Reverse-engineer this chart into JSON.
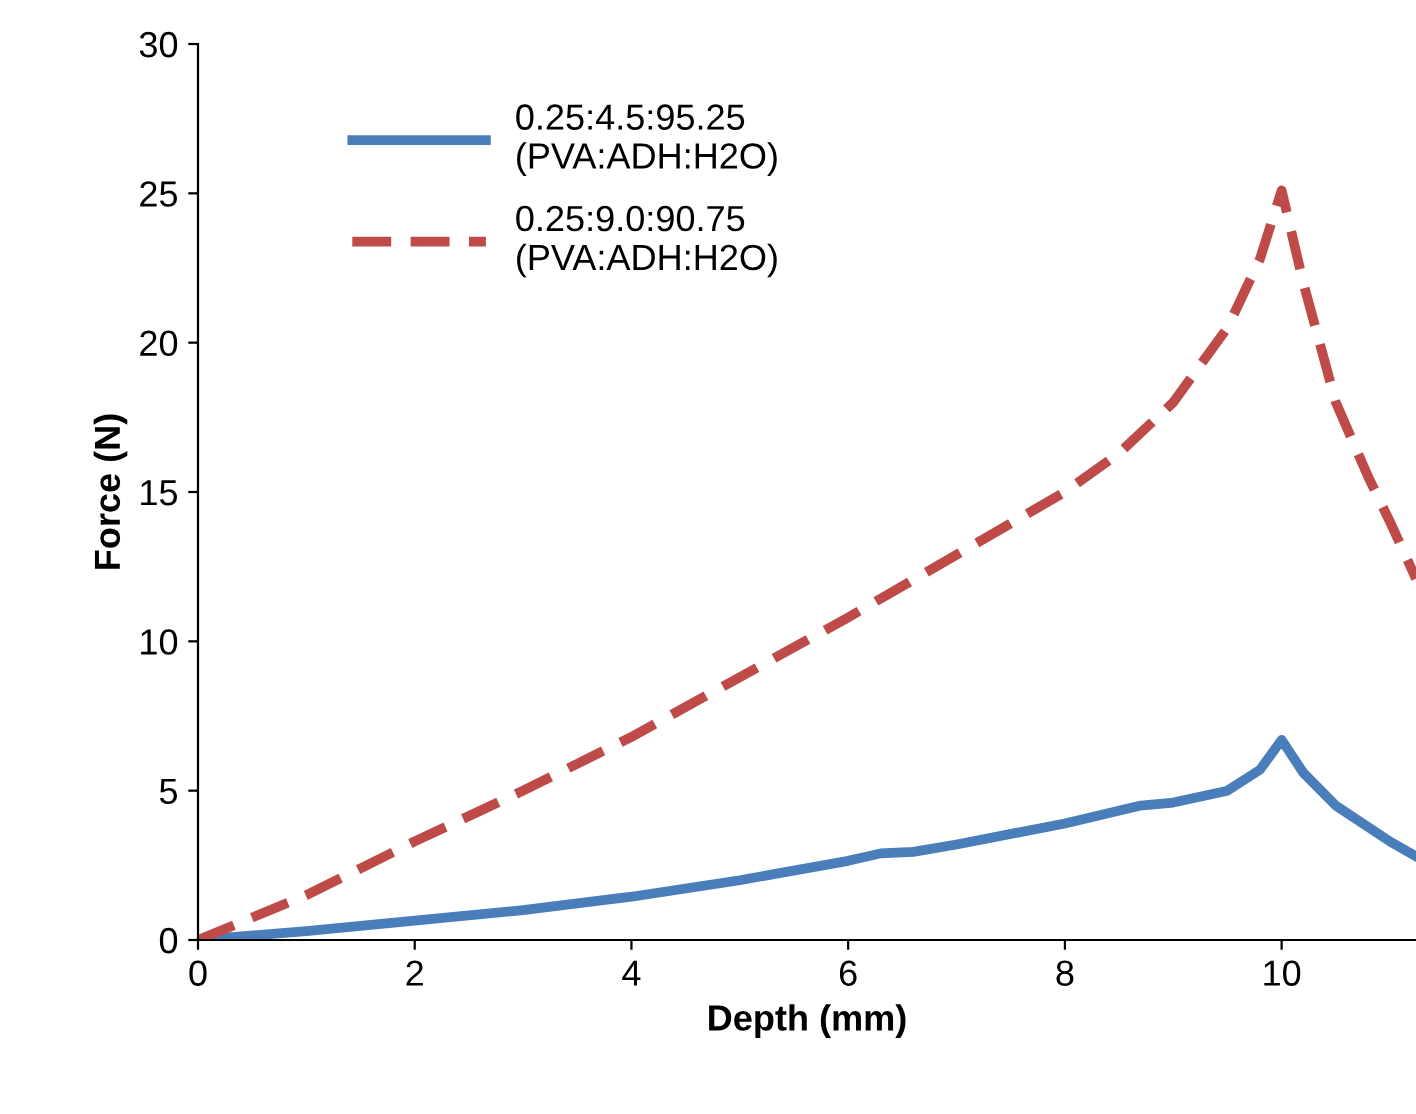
{
  "chart_data": {
    "type": "line",
    "xlabel": "Depth (mm)",
    "ylabel": "Force (N)",
    "xlim": [
      0,
      11.24
    ],
    "ylim": [
      0,
      30
    ],
    "xticks": [
      0,
      2,
      4,
      6,
      8,
      10
    ],
    "yticks": [
      0,
      5,
      10,
      15,
      20,
      25,
      30
    ],
    "grid": false,
    "legend": "top left",
    "series": [
      {
        "name": "0.25:4.5:95.25\n(PVA:ADH:H2O)",
        "color": "#4a7ebb",
        "line_style": "solid",
        "x": [
          0,
          1,
          2,
          3,
          4,
          5,
          6,
          6.3,
          6.6,
          7,
          8,
          8.7,
          9,
          9.5,
          9.8,
          10,
          10.2,
          10.5,
          11,
          11.24
        ],
        "values": [
          0,
          0.3,
          0.65,
          1.0,
          1.45,
          2.0,
          2.65,
          2.9,
          2.95,
          3.2,
          3.9,
          4.5,
          4.6,
          5.0,
          5.7,
          6.7,
          5.6,
          4.5,
          3.3,
          2.8
        ]
      },
      {
        "name": "0.25:9.0:90.75\n(PVA:ADH:H2O)",
        "color": "#be4b48",
        "line_style": "dashed",
        "x": [
          0,
          1,
          2,
          3,
          4,
          5,
          6,
          7,
          8,
          8.5,
          9,
          9.5,
          9.8,
          10,
          10.2,
          10.5,
          10.8,
          11,
          11.24
        ],
        "values": [
          0,
          1.5,
          3.3,
          5.0,
          6.8,
          8.8,
          10.8,
          12.9,
          15.0,
          16.3,
          18.0,
          20.5,
          22.8,
          25.1,
          22.0,
          18.0,
          15.5,
          14.0,
          12.1
        ]
      }
    ]
  }
}
